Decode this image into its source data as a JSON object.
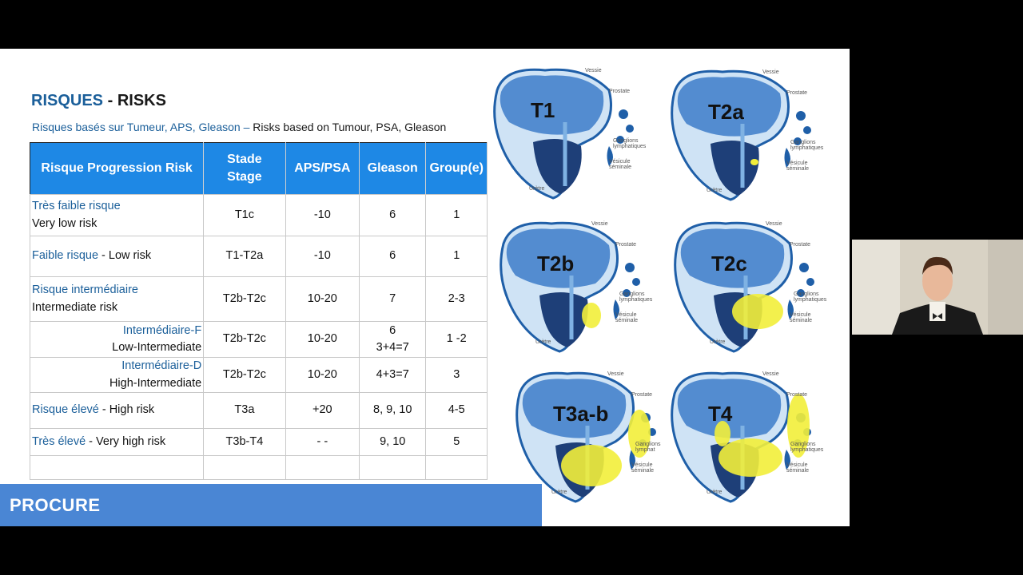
{
  "title": {
    "fr": "RISQUES",
    "sep": " - ",
    "en": "RISKS"
  },
  "subtitle": {
    "fr": "Risques basés sur Tumeur, APS, Gleason –",
    "en": " Risks based on Tumour, PSA, Gleason"
  },
  "table": {
    "headers": [
      "Risque Progression Risk",
      "Stade Stage",
      "APS/PSA",
      "Gleason",
      "Group(e)"
    ],
    "rows": [
      {
        "fr": "Très faible risque",
        "en": "Very low risk",
        "stage": "T1c",
        "psa": "-10",
        "gleason": "6",
        "group": "1"
      },
      {
        "fr": "Faible risque",
        "en": " - Low risk",
        "stage": "T1-T2a",
        "psa": "-10",
        "gleason": "6",
        "group": "1"
      },
      {
        "fr": "Risque intermédiaire",
        "en": "Intermediate risk",
        "stage": "T2b-T2c",
        "psa": "10-20",
        "gleason": "7",
        "group": "2-3"
      },
      {
        "fr": "Intermédiaire-F",
        "en": "Low-Intermediate",
        "stage": "T2b-T2c",
        "psa": "10-20",
        "gleason": "6",
        "gleason2": "3+4=7",
        "group": "1 -2"
      },
      {
        "fr": "Intermédiaire-D",
        "en": "High-Intermediate",
        "stage": "T2b-T2c",
        "psa": "10-20",
        "gleason": "4+3=7",
        "group": "3"
      },
      {
        "fr": "Risque élevé",
        "en": " - High risk",
        "stage": "T3a",
        "psa": "+20",
        "gleason": "8, 9, 10",
        "group": "4-5"
      },
      {
        "fr": "Très élevé",
        "en": " - Very high risk",
        "stage": "T3b-T4",
        "psa": "- -",
        "gleason": "9, 10",
        "group": "5"
      }
    ]
  },
  "logo": "PROCURE",
  "diagrams": [
    {
      "stage": "T1",
      "labels": [
        "Vessie",
        "Prostate",
        "Ganglions lymphatiques",
        "Vésicule séminale",
        "Urètre"
      ]
    },
    {
      "stage": "T2a",
      "labels": [
        "Vessie",
        "Prostate",
        "Ganglions lymphatiques",
        "Vésicule séminale",
        "Urètre"
      ]
    },
    {
      "stage": "T2b",
      "labels": [
        "Vessie",
        "Prostate",
        "Ganglions lymphatiques",
        "Vésicule séminale",
        "Urètre"
      ]
    },
    {
      "stage": "T2c",
      "labels": [
        "Vessie",
        "Prostate",
        "Ganglions lymphatiques",
        "Vésicule séminale",
        "Urètre"
      ]
    },
    {
      "stage": "T3a-b",
      "labels": [
        "Vessie",
        "Prostate",
        "Ganglions lymphat",
        "Vésicule séminale",
        "Urètre"
      ]
    },
    {
      "stage": "T4",
      "labels": [
        "Vessie",
        "Prostate",
        "Ganglions lymphatiques",
        "Vésicule séminale",
        "Urètre"
      ]
    }
  ],
  "colors": {
    "header": "#1e88e5",
    "french_text": "#1b5f9a",
    "footer": "#4a86d4",
    "tumour": "#f2ee3a"
  }
}
